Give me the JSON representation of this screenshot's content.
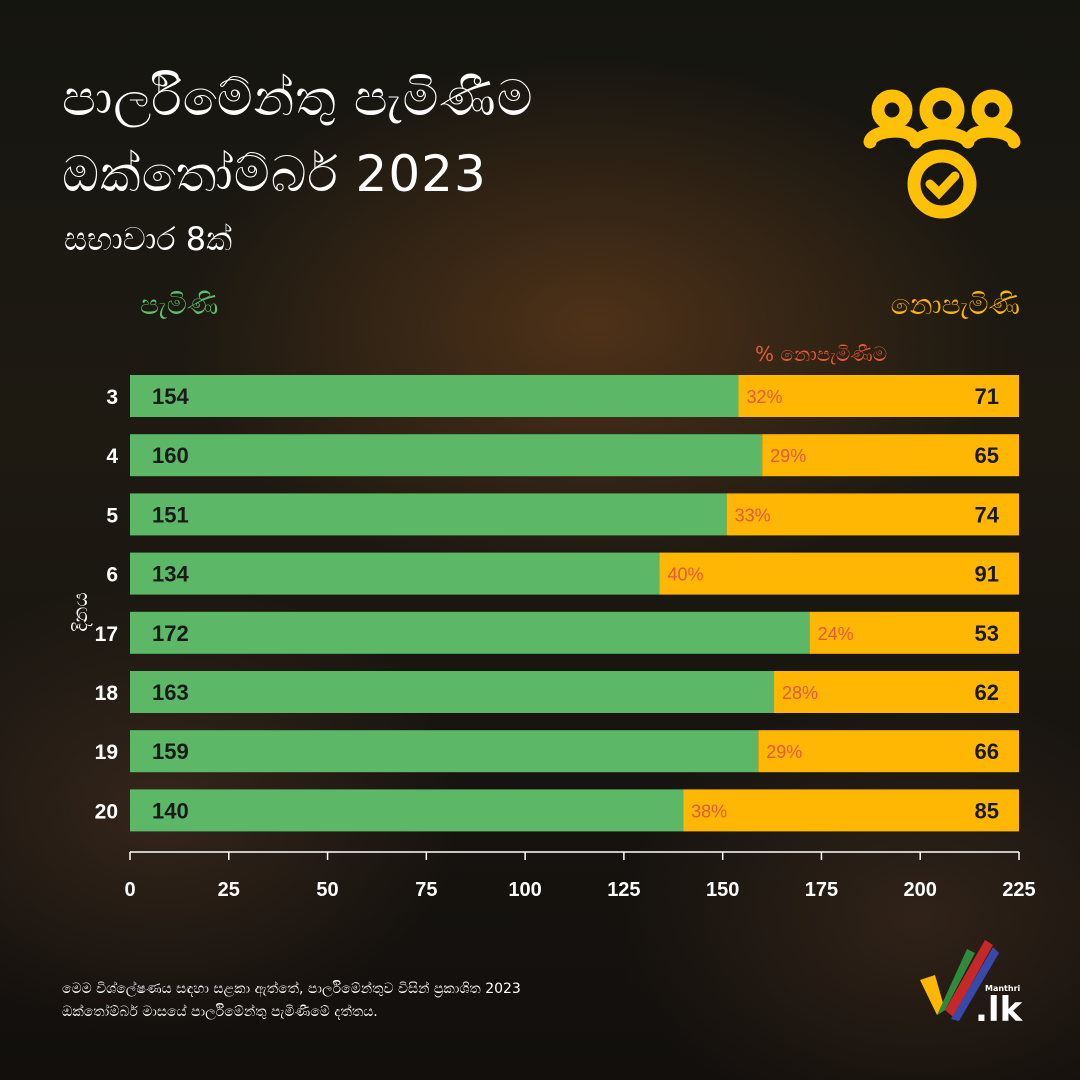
{
  "header": {
    "title_line1": "පාර්ලිමේන්තු පැමිණීම",
    "title_line2": "ඔක්තෝම්බර් 2023",
    "subtitle": "සභාවාර 8ක්"
  },
  "legend": {
    "attended": "පැමිණි",
    "absent": "නොපැමිණි",
    "percent_absent": "% නොපැමිණීම"
  },
  "colors": {
    "attended": "#5cb867",
    "absent": "#ffb703",
    "percent_text": "#e5593a",
    "icon": "#ffc107"
  },
  "chart_data": {
    "type": "bar",
    "orientation": "horizontal",
    "stacked": true,
    "ylabel": "දිනය",
    "categories": [
      "3",
      "4",
      "5",
      "6",
      "17",
      "18",
      "19",
      "20"
    ],
    "series": [
      {
        "name": "පැමිණි",
        "values": [
          154,
          160,
          151,
          134,
          172,
          163,
          159,
          140
        ]
      },
      {
        "name": "නොපැමිණි",
        "values": [
          71,
          65,
          74,
          91,
          53,
          62,
          66,
          85
        ]
      }
    ],
    "percent_labels": [
      "32%",
      "29%",
      "33%",
      "40%",
      "24%",
      "28%",
      "29%",
      "38%"
    ],
    "xlim": [
      0,
      225
    ],
    "xticks": [
      "0",
      "25",
      "50",
      "75",
      "100",
      "125",
      "150",
      "175",
      "200",
      "225"
    ],
    "grid": false
  },
  "footnote": {
    "line1": "මෙම විශ්ලේෂණය සඳහා සළකා ඇත්තේ, පාර්ලිමේන්තුව විසින් ප්‍රකාශිත 2023",
    "line2": "ඔක්තෝම්බර් මාසයේ පාර්ලිමේන්තු පැමිණීමේ දත්තය."
  },
  "brand": {
    "small": "Manthri",
    "big": ".lk"
  }
}
